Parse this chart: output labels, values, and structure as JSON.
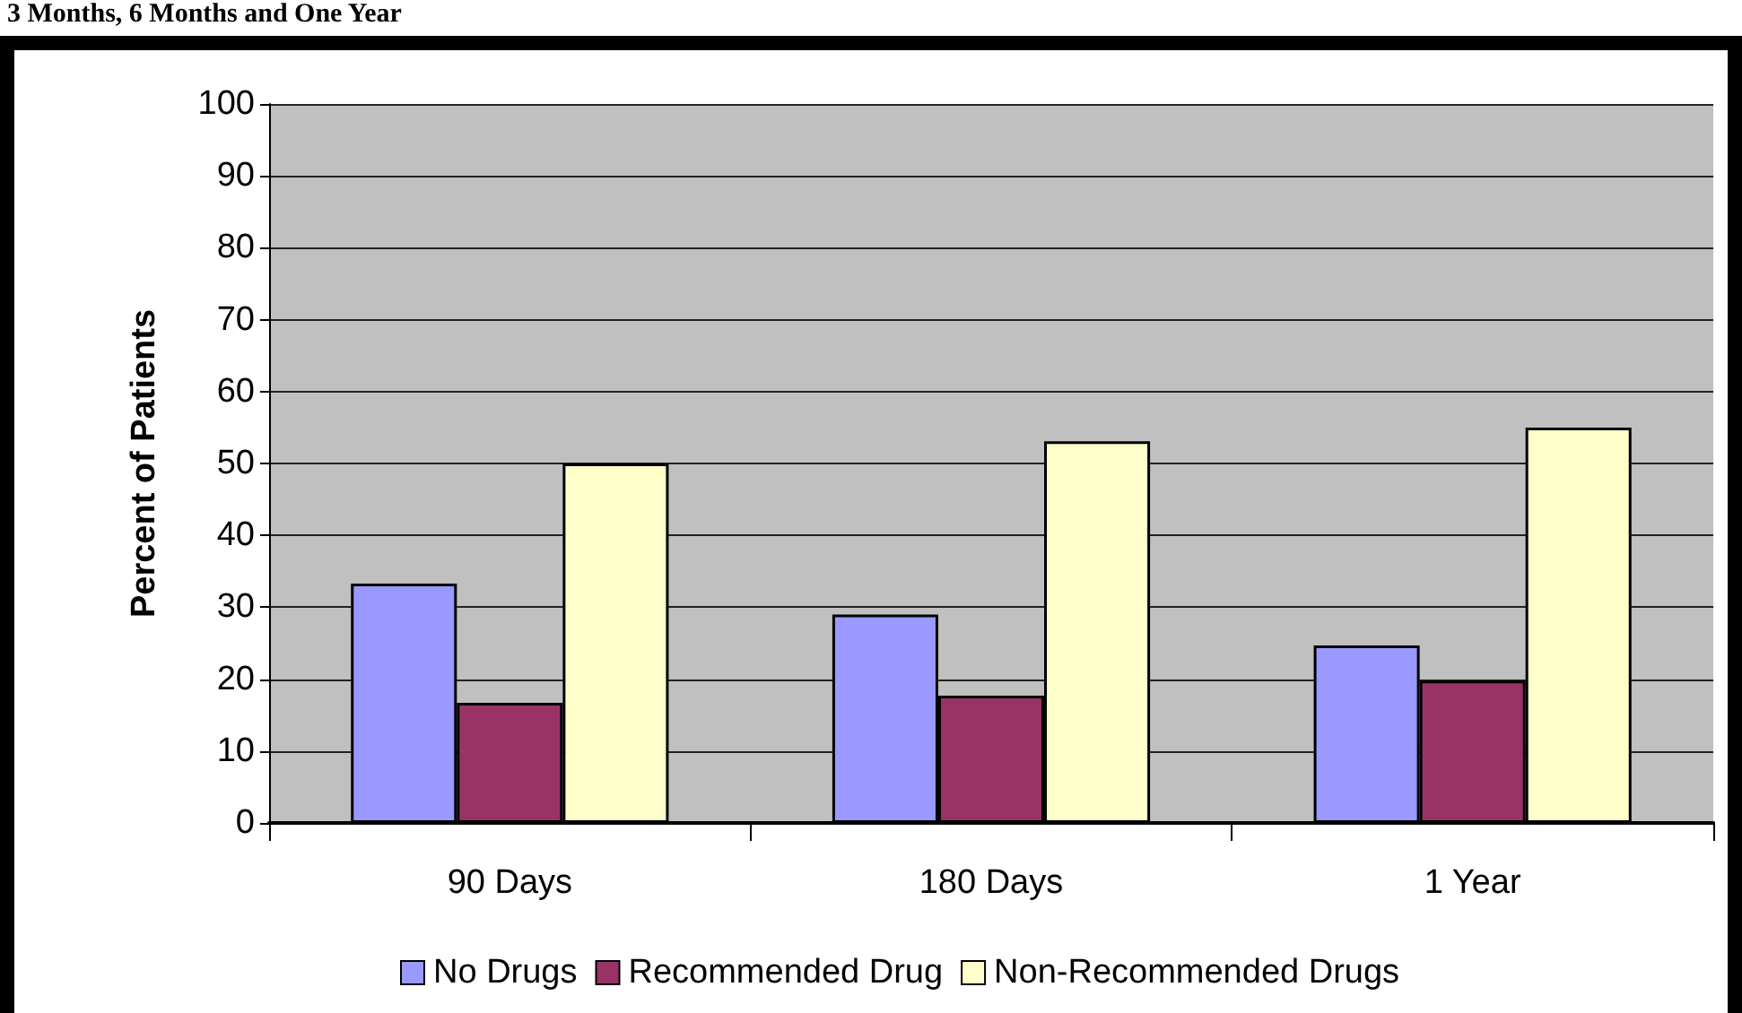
{
  "chart_data": {
    "type": "bar",
    "title": "3 Months, 6 Months and One Year",
    "ylabel": "Percent of Patients",
    "categories": [
      "90 Days",
      "180 Days",
      "1 Year"
    ],
    "series": [
      {
        "name": "No Drugs",
        "color": "#9999ff",
        "values": [
          33.3,
          29,
          24.7
        ]
      },
      {
        "name": "Recommended Drug",
        "color": "#993366",
        "values": [
          16.7,
          17.7,
          19.8
        ]
      },
      {
        "name": "Non-Recommended Drugs",
        "color": "#ffffcc",
        "values": [
          50,
          53.1,
          55
        ]
      }
    ],
    "ylim": [
      0,
      100
    ],
    "yticks": [
      0,
      10,
      20,
      30,
      40,
      50,
      60,
      70,
      80,
      90,
      100
    ],
    "grid": "y",
    "legend": "bottom"
  }
}
